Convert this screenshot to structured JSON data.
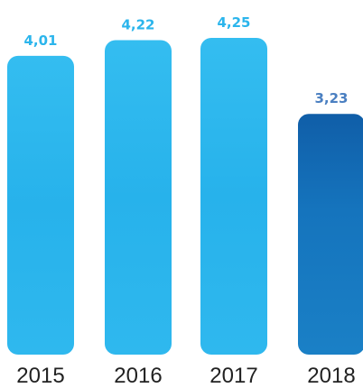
{
  "chart_data": {
    "type": "bar",
    "categories": [
      "2015",
      "2016",
      "2017",
      "2018"
    ],
    "values": [
      4.01,
      4.22,
      4.25,
      3.23
    ],
    "value_labels": [
      "4,01",
      "4,22",
      "4,25",
      "3,23"
    ],
    "title": "",
    "xlabel": "",
    "ylabel": "",
    "ylim": [
      0,
      4.25
    ],
    "grid": false,
    "legend": "none",
    "colors": {
      "bars": [
        "#2bb5ec",
        "#2bb5ec",
        "#2bb5ec",
        "#1470b8"
      ],
      "value_labels": [
        "#2bb5ec",
        "#2bb5ec",
        "#2bb5ec",
        "#4a7fc1"
      ]
    }
  }
}
